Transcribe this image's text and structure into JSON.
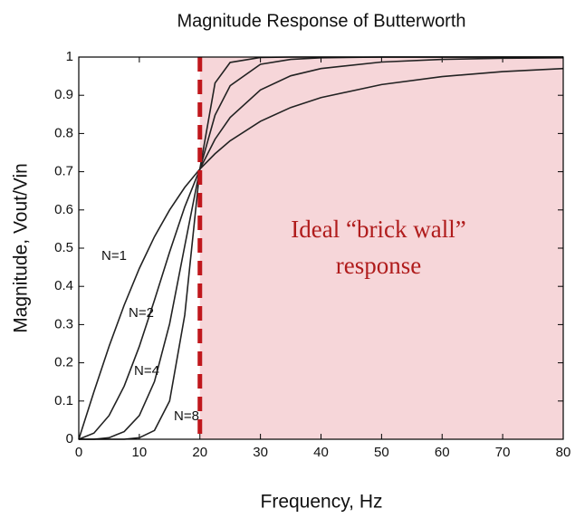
{
  "chart_data": {
    "type": "line",
    "title": "Magnitude Response of Butterworth",
    "x_label": "Frequency, Hz",
    "y_label": "Magnitude, Vout/Vin",
    "x": [
      0,
      2.5,
      5,
      7.5,
      10,
      12.5,
      15,
      17.5,
      20,
      22.5,
      25,
      30,
      35,
      40,
      50,
      60,
      70,
      80
    ],
    "series": [
      {
        "name": "N=1",
        "color": "#222222",
        "values": [
          0,
          0.124,
          0.243,
          0.351,
          0.447,
          0.53,
          0.6,
          0.659,
          0.707,
          0.747,
          0.781,
          0.832,
          0.868,
          0.894,
          0.928,
          0.949,
          0.962,
          0.97
        ]
      },
      {
        "name": "N=2",
        "color": "#222222",
        "values": [
          0,
          0.016,
          0.062,
          0.139,
          0.243,
          0.364,
          0.49,
          0.608,
          0.707,
          0.785,
          0.842,
          0.914,
          0.951,
          0.97,
          0.987,
          0.994,
          0.997,
          0.998
        ]
      },
      {
        "name": "N=4",
        "color": "#222222",
        "values": [
          0,
          0,
          0.004,
          0.02,
          0.062,
          0.151,
          0.302,
          0.506,
          0.707,
          0.848,
          0.925,
          0.981,
          0.994,
          0.998,
          1,
          1,
          1,
          1
        ]
      },
      {
        "name": "N=8",
        "color": "#222222",
        "values": [
          0,
          0,
          0,
          0,
          0.004,
          0.023,
          0.1,
          0.325,
          0.707,
          0.932,
          0.986,
          0.999,
          1,
          1,
          1,
          1,
          1,
          1
        ]
      }
    ],
    "cutoff": 20,
    "cutoff_color": "#c0171c",
    "region_color": "#f6d6d9",
    "annotation": [
      "Ideal “brick wall”",
      "response"
    ],
    "xlim": [
      0,
      80
    ],
    "xticks": [
      0,
      10,
      20,
      30,
      40,
      50,
      60,
      70,
      80
    ],
    "ylim": [
      0,
      1
    ],
    "yticks": [
      0,
      0.1,
      0.2,
      0.3,
      0.4,
      0.5,
      0.6,
      0.7,
      0.8,
      0.9,
      1
    ]
  }
}
